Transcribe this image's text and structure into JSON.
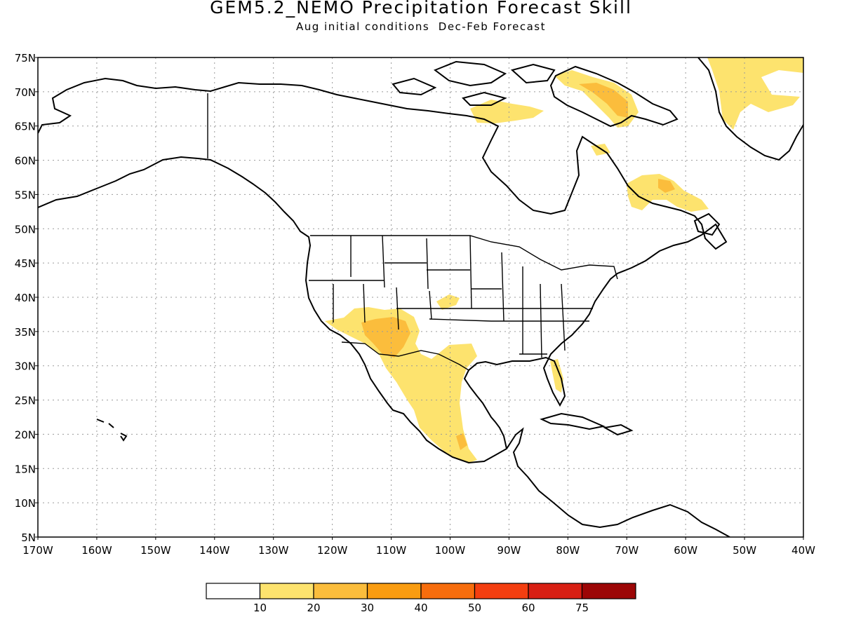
{
  "title": "GEM5.2_NEMO Precipitation Forecast Skill",
  "subtitle": "Aug initial conditions  Dec-Feb Forecast",
  "map": {
    "lon_range": [
      -170,
      -40
    ],
    "lat_range": [
      5,
      75
    ],
    "lat_ticks": [
      "5N",
      "10N",
      "15N",
      "20N",
      "25N",
      "30N",
      "35N",
      "40N",
      "45N",
      "50N",
      "55N",
      "60N",
      "65N",
      "70N",
      "75N"
    ],
    "lon_ticks": [
      "170W",
      "160W",
      "150W",
      "140W",
      "130W",
      "120W",
      "110W",
      "100W",
      "90W",
      "80W",
      "70W",
      "60W",
      "50W",
      "40W"
    ],
    "grid": "dotted"
  },
  "colorbar": {
    "colors": [
      "#ffffff",
      "#fde36e",
      "#fbbd3c",
      "#f99c11",
      "#f76d0d",
      "#f43e10",
      "#d81f13",
      "#9c0606"
    ],
    "labels": [
      "10",
      "20",
      "30",
      "40",
      "50",
      "60",
      "75"
    ]
  }
}
